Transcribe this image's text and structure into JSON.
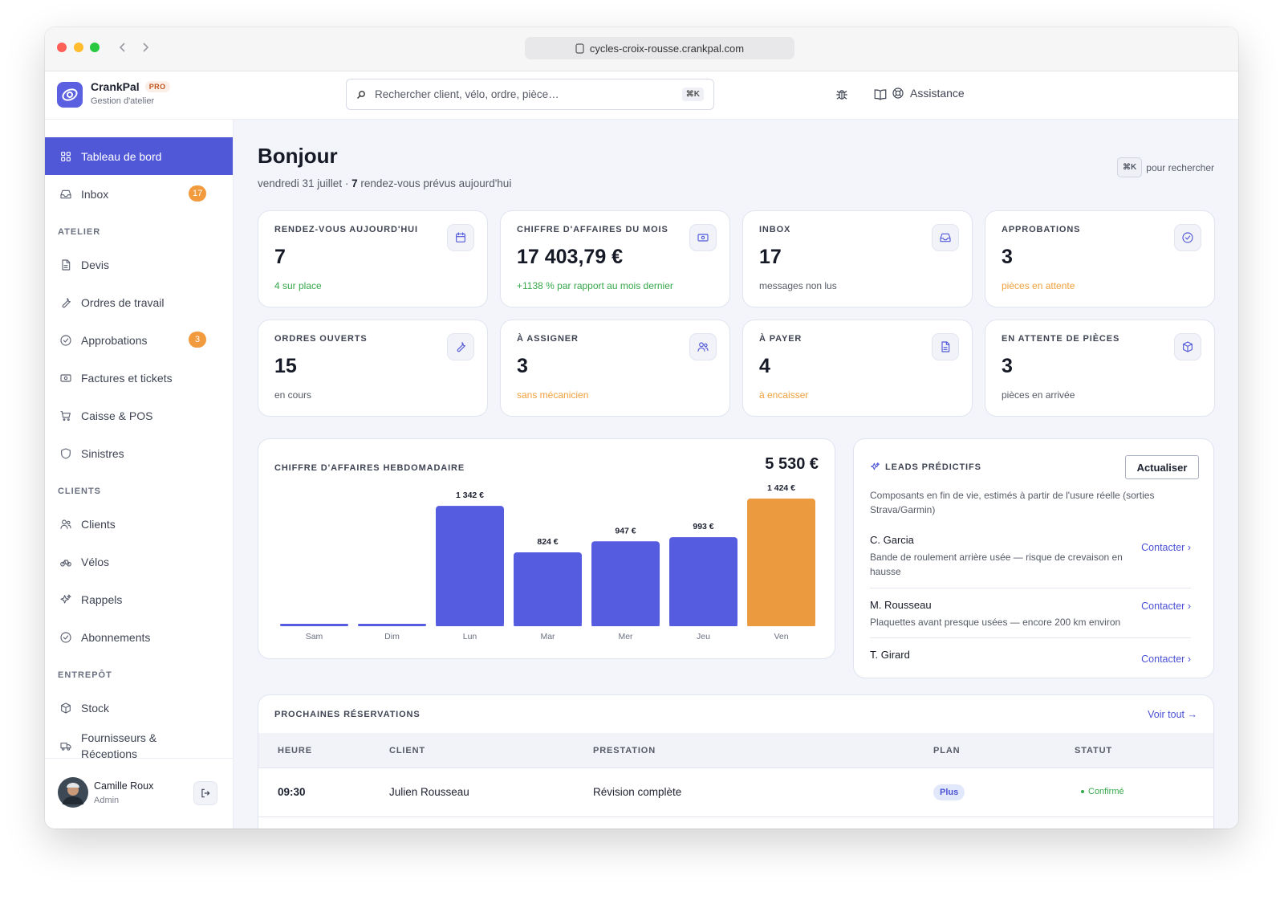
{
  "browser": {
    "url": "cycles-croix-rousse.crankpal.com"
  },
  "header": {
    "brand": "CrankPal",
    "badge": "PRO",
    "subtitle": "Gestion d'atelier",
    "search_placeholder": "Rechercher client, vélo, ordre, pièce…",
    "search_shortcut": "⌘K",
    "help": "Assistance"
  },
  "sidebar": {
    "primary": [
      {
        "label": "Tableau de bord"
      },
      {
        "label": "Inbox",
        "badge": "17"
      }
    ],
    "sections": [
      {
        "title": "ATELIER",
        "items": [
          {
            "label": "Devis"
          },
          {
            "label": "Ordres de travail"
          },
          {
            "label": "Approbations",
            "badge": "3"
          },
          {
            "label": "Factures et tickets"
          },
          {
            "label": "Caisse & POS"
          },
          {
            "label": "Sinistres"
          }
        ]
      },
      {
        "title": "CLIENTS",
        "items": [
          {
            "label": "Clients"
          },
          {
            "label": "Vélos"
          },
          {
            "label": "Rappels"
          },
          {
            "label": "Abonnements"
          }
        ]
      },
      {
        "title": "ENTREPÔT",
        "items": [
          {
            "label": "Stock"
          },
          {
            "label": "Fournisseurs & Réceptions"
          }
        ]
      }
    ],
    "user": {
      "name": "Camille Roux",
      "role": "Admin"
    }
  },
  "page": {
    "title": "Bonjour",
    "date": "vendredi 31 juillet ·",
    "count": "7",
    "subtitle": "rendez-vous prévus aujourd'hui",
    "shortcut": "⌘K",
    "shortcut_hint": "pour rechercher"
  },
  "stats": [
    {
      "label": "RENDEZ-VOUS AUJOURD'HUI",
      "value": "7",
      "note": "4 sur place",
      "note_color": "#36a84b"
    },
    {
      "label": "CHIFFRE D'AFFAIRES DU MOIS",
      "value": "17 403,79 €",
      "note": "+1138 % par rapport au mois dernier",
      "note_color": "#36a84b"
    },
    {
      "label": "INBOX",
      "value": "17",
      "note": "messages non lus",
      "note_color": "#555a66"
    },
    {
      "label": "APPROBATIONS",
      "value": "3",
      "note": "pièces en attente",
      "note_color": "#f0a03c"
    },
    {
      "label": "ORDRES OUVERTS",
      "value": "15",
      "note": "en cours",
      "note_color": "#555a66"
    },
    {
      "label": "À ASSIGNER",
      "value": "3",
      "note": "sans mécanicien",
      "note_color": "#f0a03c"
    },
    {
      "label": "À PAYER",
      "value": "4",
      "note": "à encaisser",
      "note_color": "#f0a03c"
    },
    {
      "label": "EN ATTENTE DE PIÈCES",
      "value": "3",
      "note": "pièces en arrivée",
      "note_color": "#555a66"
    }
  ],
  "weekly_revenue": {
    "type": "bar",
    "title": "CHIFFRE D'AFFAIRES HEBDOMADAIRE",
    "total": "5 530 €",
    "categories": [
      "Sam",
      "Dim",
      "Lun",
      "Mar",
      "Mer",
      "Jeu",
      "Ven"
    ],
    "values": [
      0,
      0,
      1342,
      824,
      947,
      993,
      1424
    ],
    "value_labels": [
      null,
      null,
      "1 342 €",
      "824 €",
      "947 €",
      "993 €",
      "1 424 €"
    ],
    "colors": [
      "#565ce0",
      "#565ce0",
      "#565ce0",
      "#565ce0",
      "#565ce0",
      "#565ce0",
      "#ec9a40"
    ]
  },
  "leads": {
    "title": "LEADS PRÉDICTIFS",
    "button": "Actualiser",
    "description": "Composants en fin de vie, estimés à partir de l'usure réelle (sorties Strava/Garmin)",
    "items": [
      {
        "name": "C. Garcia",
        "detail": "Bande de roulement arrière usée — risque de crevaison en hausse",
        "action": "Contacter ›"
      },
      {
        "name": "M. Rousseau",
        "detail": "Plaquettes avant presque usées — encore 200 km environ",
        "action": "Contacter ›"
      },
      {
        "name": "T. Girard",
        "action": "Contacter ›"
      }
    ]
  },
  "reservations": {
    "title": "PROCHAINES RÉSERVATIONS",
    "link": "Voir tout →",
    "columns": [
      "HEURE",
      "CLIENT",
      "PRESTATION",
      "PLAN",
      "STATUT"
    ],
    "rows": [
      [
        "09:30",
        "Julien Rousseau",
        "Révision complète",
        "Plus",
        "Confirmé"
      ]
    ]
  }
}
